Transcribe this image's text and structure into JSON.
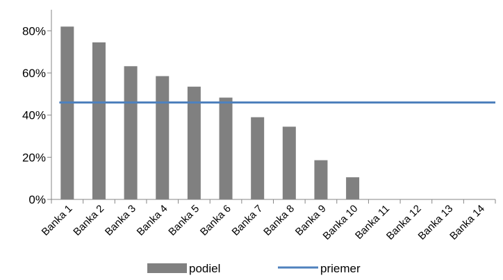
{
  "chart_data": {
    "type": "bar",
    "categories": [
      "Banka 1",
      "Banka 2",
      "Banka 3",
      "Banka 4",
      "Banka 5",
      "Banka 6",
      "Banka 7",
      "Banka 8",
      "Banka 9",
      "Banka 10",
      "Banka 11",
      "Banka 12",
      "Banka 13",
      "Banka 14"
    ],
    "series": [
      {
        "name": "podiel",
        "type": "bar",
        "color": "#808080",
        "values": [
          0.82,
          0.745,
          0.632,
          0.585,
          0.535,
          0.483,
          0.39,
          0.345,
          0.186,
          0.105,
          0,
          0,
          0,
          0
        ]
      },
      {
        "name": "priemer",
        "type": "line",
        "color": "#4f81bd",
        "values": [
          0.46,
          0.46,
          0.46,
          0.46,
          0.46,
          0.46,
          0.46,
          0.46,
          0.46,
          0.46,
          0.46,
          0.46,
          0.46,
          0.46
        ]
      }
    ],
    "yticks": [
      0,
      0.2,
      0.4,
      0.6,
      0.8
    ],
    "ytick_labels": [
      "0%",
      "20%",
      "40%",
      "60%",
      "80%"
    ],
    "ylim": [
      0,
      0.9
    ],
    "grid": false,
    "legend_position": "bottom"
  }
}
